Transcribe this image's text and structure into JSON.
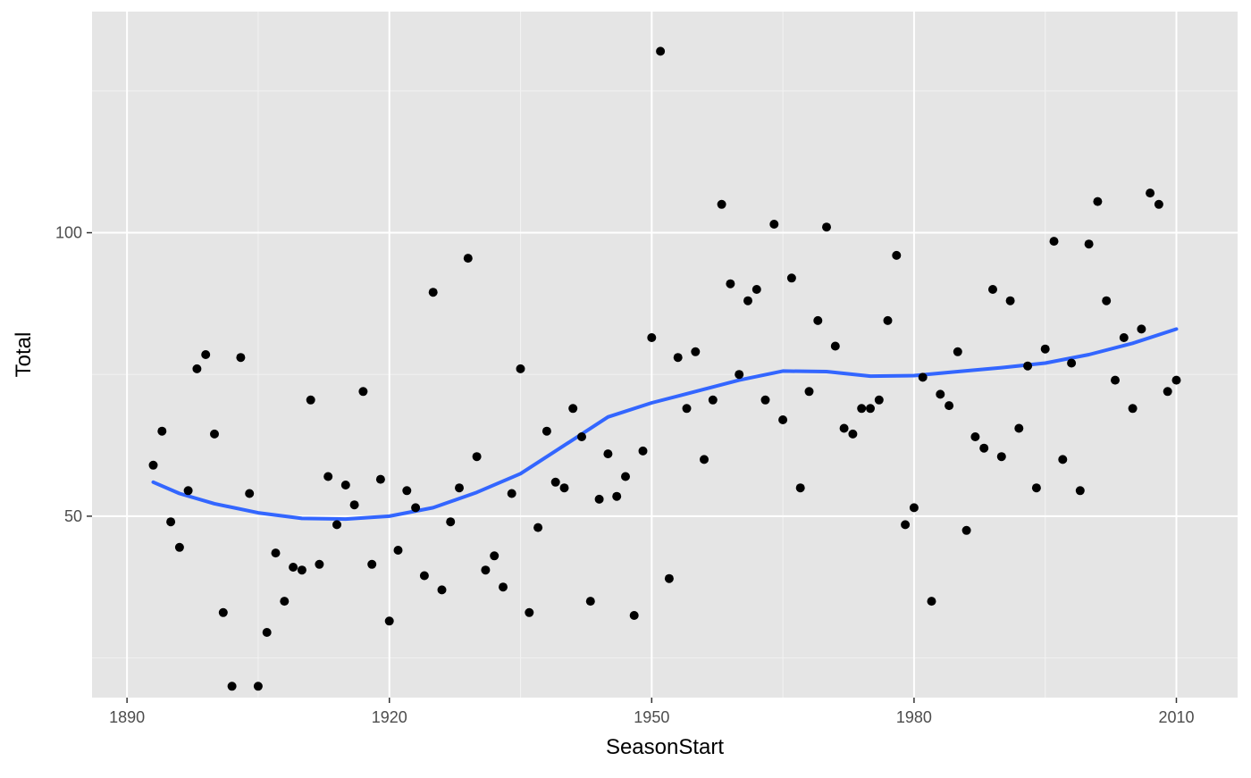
{
  "chart_data": {
    "type": "scatter",
    "xlabel": "SeasonStart",
    "ylabel": "Total",
    "xlim": [
      1886,
      2017
    ],
    "ylim": [
      18,
      139
    ],
    "x_ticks": [
      1890,
      1920,
      1950,
      1980,
      2010
    ],
    "x_minor_ticks": [
      1905,
      1935,
      1965,
      1995
    ],
    "y_ticks": [
      50,
      100
    ],
    "y_minor_ticks": [
      25,
      75,
      125
    ],
    "grid": true,
    "panel_background": "#e5e5e5",
    "point_color": "#000000",
    "smooth_color": "#3366ff",
    "points": [
      [
        1893,
        59
      ],
      [
        1894,
        65
      ],
      [
        1895,
        49
      ],
      [
        1896,
        44.5
      ],
      [
        1897,
        54.5
      ],
      [
        1898,
        76
      ],
      [
        1899,
        78.5
      ],
      [
        1900,
        64.5
      ],
      [
        1901,
        33
      ],
      [
        1902,
        20
      ],
      [
        1903,
        78
      ],
      [
        1904,
        54
      ],
      [
        1905,
        20
      ],
      [
        1906,
        29.5
      ],
      [
        1907,
        43.5
      ],
      [
        1908,
        35
      ],
      [
        1909,
        41
      ],
      [
        1910,
        40.5
      ],
      [
        1911,
        70.5
      ],
      [
        1912,
        41.5
      ],
      [
        1913,
        57
      ],
      [
        1914,
        48.5
      ],
      [
        1915,
        55.5
      ],
      [
        1916,
        52
      ],
      [
        1917,
        72
      ],
      [
        1918,
        41.5
      ],
      [
        1919,
        56.5
      ],
      [
        1920,
        31.5
      ],
      [
        1921,
        44
      ],
      [
        1922,
        54.5
      ],
      [
        1923,
        51.5
      ],
      [
        1924,
        39.5
      ],
      [
        1925,
        89.5
      ],
      [
        1926,
        37
      ],
      [
        1927,
        49
      ],
      [
        1928,
        55
      ],
      [
        1929,
        95.5
      ],
      [
        1930,
        60.5
      ],
      [
        1931,
        40.5
      ],
      [
        1932,
        43
      ],
      [
        1933,
        37.5
      ],
      [
        1934,
        54
      ],
      [
        1935,
        76
      ],
      [
        1936,
        33
      ],
      [
        1937,
        48
      ],
      [
        1938,
        65
      ],
      [
        1939,
        56
      ],
      [
        1940,
        55
      ],
      [
        1941,
        69
      ],
      [
        1942,
        64
      ],
      [
        1943,
        35
      ],
      [
        1944,
        53
      ],
      [
        1945,
        61
      ],
      [
        1946,
        53.5
      ],
      [
        1947,
        57
      ],
      [
        1948,
        32.5
      ],
      [
        1949,
        61.5
      ],
      [
        1950,
        81.5
      ],
      [
        1951,
        132
      ],
      [
        1952,
        39
      ],
      [
        1953,
        78
      ],
      [
        1954,
        69
      ],
      [
        1955,
        79
      ],
      [
        1956,
        60
      ],
      [
        1957,
        70.5
      ],
      [
        1958,
        105
      ],
      [
        1959,
        91
      ],
      [
        1960,
        75
      ],
      [
        1961,
        88
      ],
      [
        1962,
        90
      ],
      [
        1963,
        70.5
      ],
      [
        1964,
        101.5
      ],
      [
        1965,
        67
      ],
      [
        1966,
        92
      ],
      [
        1967,
        55
      ],
      [
        1968,
        72
      ],
      [
        1969,
        84.5
      ],
      [
        1970,
        101
      ],
      [
        1971,
        80
      ],
      [
        1972,
        65.5
      ],
      [
        1973,
        64.5
      ],
      [
        1974,
        69
      ],
      [
        1975,
        69
      ],
      [
        1976,
        70.5
      ],
      [
        1977,
        84.5
      ],
      [
        1978,
        96
      ],
      [
        1979,
        48.5
      ],
      [
        1980,
        51.5
      ],
      [
        1981,
        74.5
      ],
      [
        1982,
        35
      ],
      [
        1983,
        71.5
      ],
      [
        1984,
        69.5
      ],
      [
        1985,
        79
      ],
      [
        1986,
        47.5
      ],
      [
        1987,
        64
      ],
      [
        1988,
        62
      ],
      [
        1989,
        90
      ],
      [
        1990,
        60.5
      ],
      [
        1991,
        88
      ],
      [
        1992,
        65.5
      ],
      [
        1993,
        76.5
      ],
      [
        1994,
        55
      ],
      [
        1995,
        79.5
      ],
      [
        1996,
        98.5
      ],
      [
        1997,
        60
      ],
      [
        1998,
        77
      ],
      [
        1999,
        54.5
      ],
      [
        2000,
        98
      ],
      [
        2001,
        105.5
      ],
      [
        2002,
        88
      ],
      [
        2003,
        74
      ],
      [
        2004,
        81.5
      ],
      [
        2005,
        69
      ],
      [
        2006,
        83
      ],
      [
        2007,
        107
      ],
      [
        2008,
        105
      ],
      [
        2009,
        72
      ],
      [
        2010,
        74
      ]
    ],
    "smooth": [
      [
        1893,
        56
      ],
      [
        1896,
        54
      ],
      [
        1900,
        52.2
      ],
      [
        1905,
        50.6
      ],
      [
        1910,
        49.6
      ],
      [
        1915,
        49.5
      ],
      [
        1920,
        50
      ],
      [
        1925,
        51.5
      ],
      [
        1930,
        54.2
      ],
      [
        1935,
        57.5
      ],
      [
        1940,
        62.5
      ],
      [
        1945,
        67.5
      ],
      [
        1950,
        70
      ],
      [
        1955,
        72
      ],
      [
        1960,
        74
      ],
      [
        1965,
        75.6
      ],
      [
        1970,
        75.5
      ],
      [
        1975,
        74.7
      ],
      [
        1980,
        74.8
      ],
      [
        1985,
        75.5
      ],
      [
        1990,
        76.2
      ],
      [
        1995,
        77
      ],
      [
        2000,
        78.5
      ],
      [
        2005,
        80.5
      ],
      [
        2010,
        83
      ]
    ]
  }
}
